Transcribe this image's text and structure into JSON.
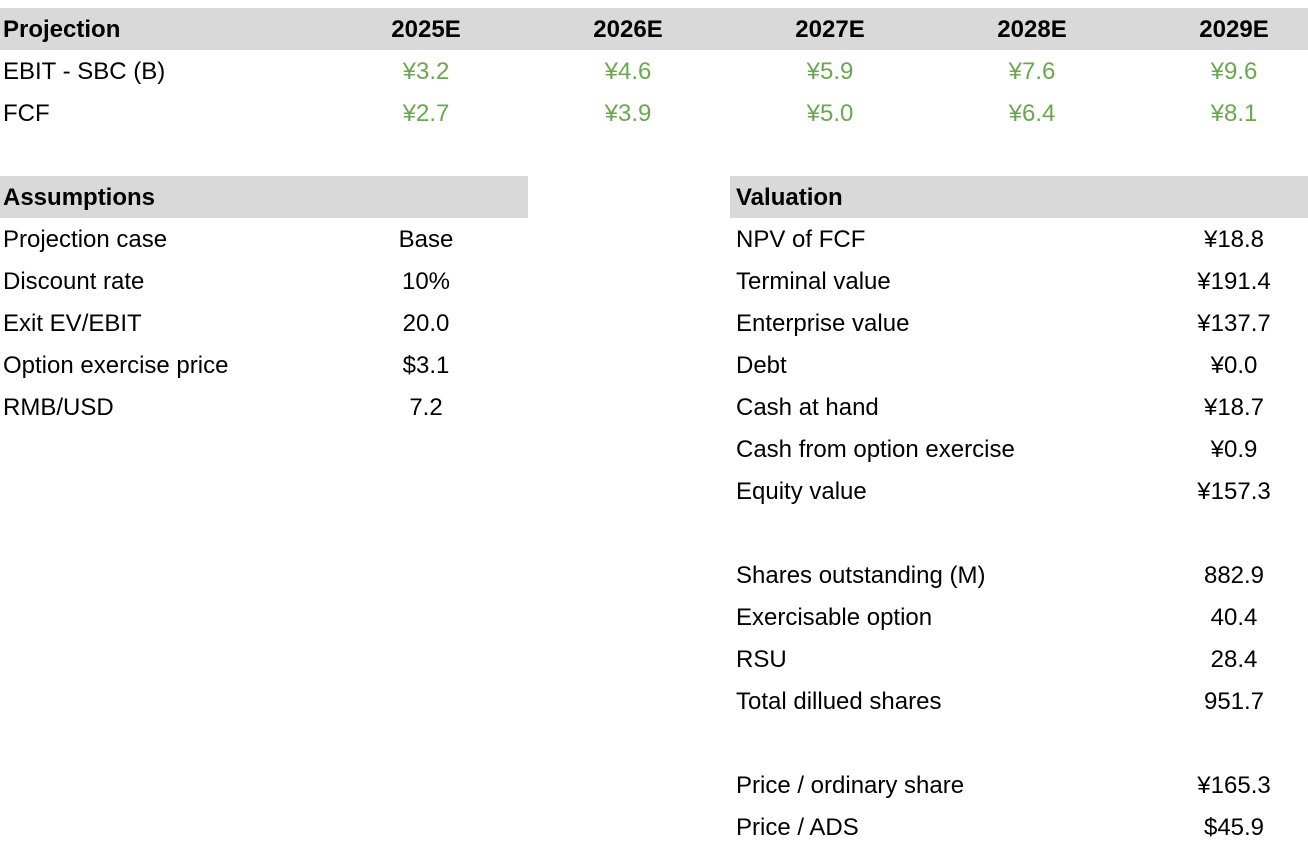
{
  "colors": {
    "header_bg": "#d9d9d9",
    "projection_value": "#6aa84f"
  },
  "projection": {
    "header": "Projection",
    "years": [
      "2025E",
      "2026E",
      "2027E",
      "2028E",
      "2029E"
    ],
    "rows": [
      {
        "label": "EBIT - SBC (B)",
        "values": [
          "¥3.2",
          "¥4.6",
          "¥5.9",
          "¥7.6",
          "¥9.6"
        ]
      },
      {
        "label": "FCF",
        "values": [
          "¥2.7",
          "¥3.9",
          "¥5.0",
          "¥6.4",
          "¥8.1"
        ]
      }
    ]
  },
  "assumptions": {
    "header": "Assumptions",
    "rows": [
      {
        "label": "Projection case",
        "value": "Base"
      },
      {
        "label": "Discount rate",
        "value": "10%"
      },
      {
        "label": "Exit EV/EBIT",
        "value": "20.0"
      },
      {
        "label": "Option exercise price",
        "value": "$3.1"
      },
      {
        "label": "RMB/USD",
        "value": "7.2"
      }
    ]
  },
  "valuation": {
    "header": "Valuation",
    "rows": [
      {
        "label": "NPV of FCF",
        "value": "¥18.8"
      },
      {
        "label": "Terminal value",
        "value": "¥191.4"
      },
      {
        "label": "Enterprise value",
        "value": "¥137.7"
      },
      {
        "label": "Debt",
        "value": "¥0.0"
      },
      {
        "label": "Cash at hand",
        "value": "¥18.7"
      },
      {
        "label": "Cash from option exercise",
        "value": "¥0.9"
      },
      {
        "label": "Equity value",
        "value": "¥157.3"
      },
      {
        "label": "Shares outstanding (M)",
        "value": "882.9"
      },
      {
        "label": "Exercisable option",
        "value": "40.4"
      },
      {
        "label": "RSU",
        "value": "28.4"
      },
      {
        "label": "Total dillued shares",
        "value": "951.7"
      },
      {
        "label": "Price / ordinary share",
        "value": "¥165.3"
      },
      {
        "label": "Price / ADS",
        "value": "$45.9"
      }
    ]
  }
}
